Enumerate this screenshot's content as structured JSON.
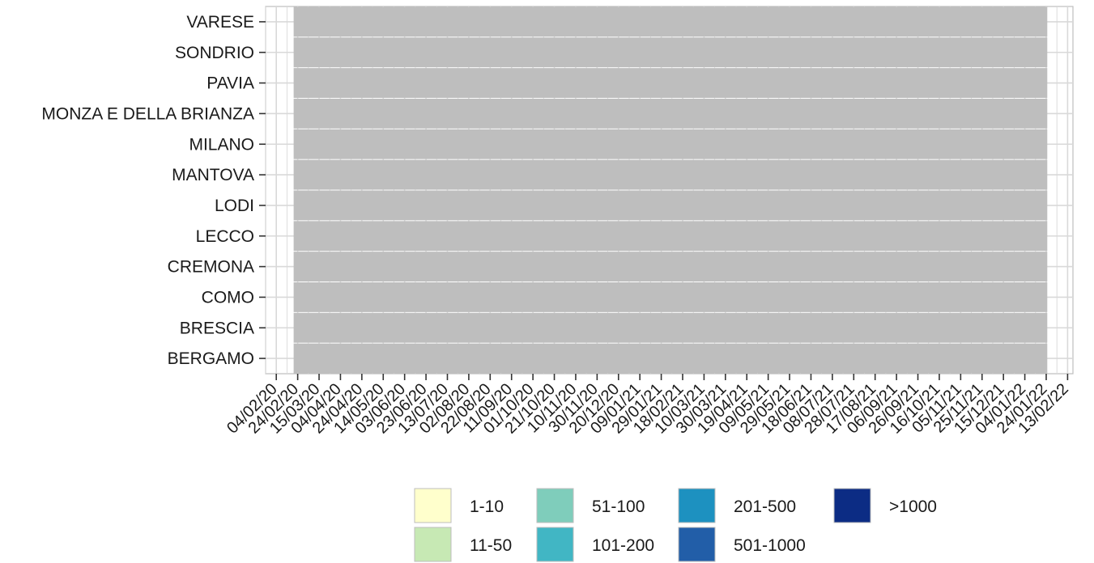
{
  "chart_data": {
    "type": "heatmap",
    "title": "",
    "xlabel": "",
    "ylabel": "",
    "provinces": [
      "VARESE",
      "SONDRIO",
      "PAVIA",
      "MONZA E DELLA BRIANZA",
      "MILANO",
      "MANTOVA",
      "LODI",
      "LECCO",
      "CREMONA",
      "COMO",
      "BRESCIA",
      "BERGAMO"
    ],
    "x_ticks": [
      "04/02/20",
      "24/02/20",
      "15/03/20",
      "04/04/20",
      "24/04/20",
      "14/05/20",
      "03/06/20",
      "23/06/20",
      "13/07/20",
      "02/08/20",
      "22/08/20",
      "11/09/20",
      "01/10/20",
      "21/10/20",
      "10/11/20",
      "30/11/20",
      "20/12/20",
      "09/01/21",
      "29/01/21",
      "18/02/21",
      "10/03/21",
      "30/03/21",
      "19/04/21",
      "09/05/21",
      "29/05/21",
      "18/06/21",
      "08/07/21",
      "28/07/21",
      "17/08/21",
      "06/09/21",
      "26/09/21",
      "16/10/21",
      "05/11/21",
      "25/11/21",
      "15/12/21",
      "04/01/22",
      "24/01/22",
      "13/02/22"
    ],
    "x_range": [
      "2020-01-25",
      "2022-02-18"
    ],
    "data_start": "2020-02-24",
    "data_end": "2022-01-25",
    "fill_color": "#bebebe",
    "legend": {
      "placement": "bottom",
      "items": [
        {
          "label": "1-10",
          "color": "#ffffcc"
        },
        {
          "label": "11-50",
          "color": "#c7e9b4"
        },
        {
          "label": "51-100",
          "color": "#7fcdbb"
        },
        {
          "label": "101-200",
          "color": "#41b6c4"
        },
        {
          "label": "201-500",
          "color": "#1d91c0"
        },
        {
          "label": "501-1000",
          "color": "#225ea8"
        },
        {
          "label": ">1000",
          "color": "#0c2c84"
        }
      ]
    },
    "grid": true
  }
}
